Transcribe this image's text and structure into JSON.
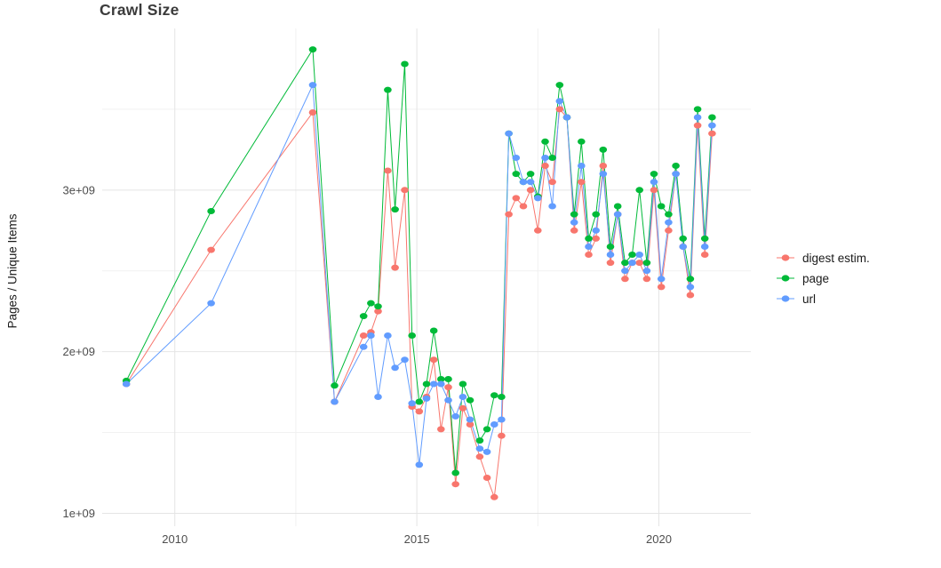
{
  "title": "Crawl Size",
  "legend": {
    "items": [
      {
        "label": "digest estim.",
        "color": "#F8766D"
      },
      {
        "label": "page",
        "color": "#00BA38"
      },
      {
        "label": "url",
        "color": "#619CFF"
      }
    ]
  },
  "colors": {
    "digest": "#F8766D",
    "page": "#00BA38",
    "url": "#619CFF",
    "grid_major": "#e4e4e4",
    "grid_minor": "#f1f1f1",
    "tick_text": "#4e4e4e"
  },
  "chart_data": {
    "type": "line",
    "marker": "circle",
    "title": "Crawl Size",
    "xlabel": "",
    "ylabel": "Pages / Unique Items",
    "values_unit": "1e9 (billions of pages / unique items)",
    "grid": true,
    "legend_position": "right",
    "xlim": [
      2008.5,
      2021.9
    ],
    "ylim": [
      0.92,
      4.0
    ],
    "x_ticks": [
      {
        "value": 2010,
        "label": "2010"
      },
      {
        "value": 2015,
        "label": "2015"
      },
      {
        "value": 2020,
        "label": "2020"
      }
    ],
    "x_minor_ticks": [
      2012.5,
      2017.5
    ],
    "y_ticks": [
      {
        "value": 1,
        "label": "1e+09"
      },
      {
        "value": 2,
        "label": "2e+09"
      },
      {
        "value": 3,
        "label": "3e+09"
      }
    ],
    "y_minor_ticks": [
      1.5,
      2.5,
      3.5
    ],
    "x": [
      2009.0,
      2010.75,
      2012.85,
      2013.3,
      2013.9,
      2014.05,
      2014.2,
      2014.4,
      2014.55,
      2014.75,
      2014.9,
      2015.05,
      2015.2,
      2015.35,
      2015.5,
      2015.65,
      2015.8,
      2015.95,
      2016.1,
      2016.3,
      2016.45,
      2016.6,
      2016.75,
      2016.9,
      2017.05,
      2017.2,
      2017.35,
      2017.5,
      2017.65,
      2017.8,
      2017.95,
      2018.1,
      2018.25,
      2018.4,
      2018.55,
      2018.7,
      2018.85,
      2019.0,
      2019.15,
      2019.3,
      2019.45,
      2019.6,
      2019.75,
      2019.9,
      2020.05,
      2020.2,
      2020.35,
      2020.5,
      2020.65,
      2020.8,
      2020.95,
      2021.1
    ],
    "series": [
      {
        "name": "digest estim.",
        "color": "#F8766D",
        "values": [
          1.8,
          2.63,
          3.48,
          1.69,
          2.1,
          2.12,
          2.25,
          3.12,
          2.52,
          3.0,
          1.66,
          1.63,
          1.72,
          1.95,
          1.52,
          1.78,
          1.18,
          1.65,
          1.55,
          1.35,
          1.22,
          1.1,
          1.48,
          2.85,
          2.95,
          2.9,
          3.0,
          2.75,
          3.15,
          3.05,
          3.5,
          3.45,
          2.75,
          3.05,
          2.6,
          2.7,
          3.15,
          2.55,
          2.85,
          2.45,
          2.55,
          2.55,
          2.45,
          3.0,
          2.4,
          2.75,
          3.1,
          2.65,
          2.35,
          3.4,
          2.6,
          3.35
        ]
      },
      {
        "name": "page",
        "color": "#00BA38",
        "values": [
          1.82,
          2.87,
          3.87,
          1.79,
          2.22,
          2.3,
          2.28,
          3.62,
          2.88,
          3.78,
          2.1,
          1.69,
          1.8,
          2.13,
          1.83,
          1.83,
          1.25,
          1.8,
          1.7,
          1.45,
          1.52,
          1.73,
          1.72,
          3.35,
          3.1,
          3.05,
          3.1,
          2.96,
          3.3,
          3.2,
          3.65,
          3.45,
          2.85,
          3.3,
          2.7,
          2.85,
          3.25,
          2.65,
          2.9,
          2.55,
          2.6,
          3.0,
          2.55,
          3.1,
          2.9,
          2.85,
          3.15,
          2.7,
          2.45,
          3.5,
          2.7,
          3.45
        ]
      },
      {
        "name": "url",
        "color": "#619CFF",
        "values": [
          1.8,
          2.3,
          3.65,
          1.69,
          2.03,
          2.1,
          1.72,
          2.1,
          1.9,
          1.95,
          1.68,
          1.3,
          1.71,
          1.8,
          1.8,
          1.7,
          1.6,
          1.72,
          1.58,
          1.4,
          1.38,
          1.55,
          1.58,
          3.35,
          3.2,
          3.05,
          3.05,
          2.95,
          3.2,
          2.9,
          3.55,
          3.45,
          2.8,
          3.15,
          2.65,
          2.75,
          3.1,
          2.6,
          2.85,
          2.5,
          2.55,
          2.6,
          2.5,
          3.05,
          2.45,
          2.8,
          3.1,
          2.65,
          2.4,
          3.45,
          2.65,
          3.4
        ]
      }
    ]
  }
}
